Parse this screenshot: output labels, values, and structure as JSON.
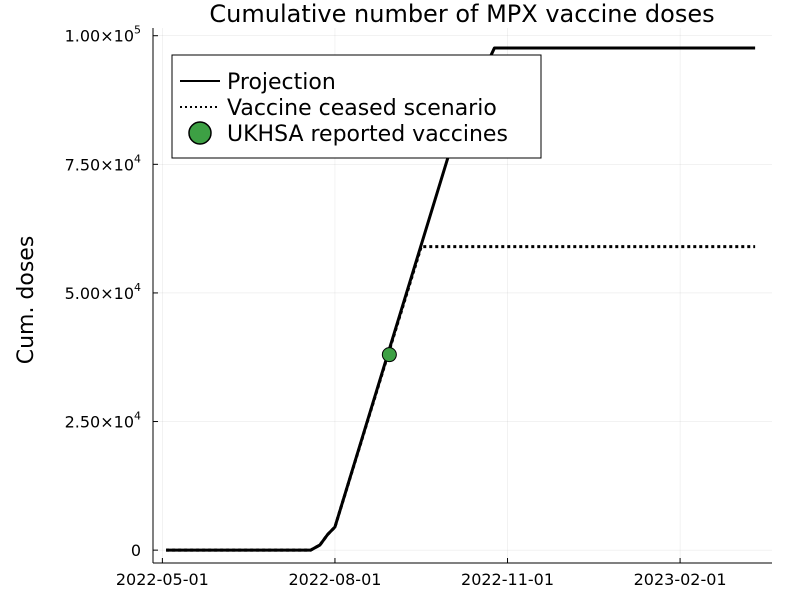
{
  "chart_data": {
    "type": "line",
    "title": "Cumulative number of MPX vaccine doses",
    "xlabel": "",
    "ylabel": "Cum. doses",
    "x_type": "date",
    "xlim": [
      "2022-04-26",
      "2023-03-22"
    ],
    "ylim": [
      -2500,
      101500
    ],
    "grid": true,
    "legend_position": "top-left",
    "x_ticks": [
      {
        "value": "2022-05-01",
        "label": "2022-05-01"
      },
      {
        "value": "2022-08-01",
        "label": "2022-08-01"
      },
      {
        "value": "2022-11-01",
        "label": "2022-11-01"
      },
      {
        "value": "2023-02-01",
        "label": "2023-02-01"
      }
    ],
    "y_ticks": [
      {
        "value": 0,
        "mantissa": "0",
        "exponent": ""
      },
      {
        "value": 25000,
        "mantissa": "2.50×10",
        "exponent": "4"
      },
      {
        "value": 50000,
        "mantissa": "5.00×10",
        "exponent": "4"
      },
      {
        "value": 75000,
        "mantissa": "7.50×10",
        "exponent": "4"
      },
      {
        "value": 100000,
        "mantissa": "1.00×10",
        "exponent": "5"
      }
    ],
    "series": [
      {
        "name": "Projection",
        "style": "solid",
        "color": "#000000",
        "points": [
          [
            "2022-05-03",
            0
          ],
          [
            "2022-07-19",
            0
          ],
          [
            "2022-07-24",
            1000
          ],
          [
            "2022-07-28",
            3000
          ],
          [
            "2022-08-01",
            4500
          ],
          [
            "2022-10-05",
            82000
          ],
          [
            "2022-10-25",
            97600
          ],
          [
            "2023-03-13",
            97600
          ]
        ]
      },
      {
        "name": "Vaccine ceased scenario",
        "style": "dotted",
        "color": "#000000",
        "points": [
          [
            "2022-05-03",
            0
          ],
          [
            "2022-07-19",
            0
          ],
          [
            "2022-07-24",
            1000
          ],
          [
            "2022-07-28",
            3000
          ],
          [
            "2022-08-01",
            4500
          ],
          [
            "2022-09-16",
            59000
          ],
          [
            "2023-03-13",
            59000
          ]
        ]
      },
      {
        "name": "UKHSA reported vaccines",
        "style": "marker",
        "color": "#3DA044",
        "points": [
          [
            "2022-08-30",
            38000
          ]
        ]
      }
    ]
  }
}
